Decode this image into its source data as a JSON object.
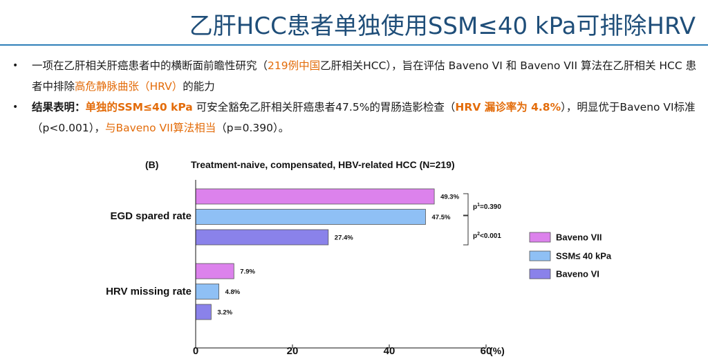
{
  "slide": {
    "title": "乙肝HCC患者单独使用SSM≤40 kPa可排除HRV",
    "bullet1": {
      "t1": "一项在乙肝相关肝癌患者中的横断面前瞻性研究（",
      "h1": "219例中国",
      "t2": "乙肝相关HCC），旨在评估 Baveno VI 和 Baveno VII 算法在乙肝相关 HCC 患者中排除",
      "h2": "高危静脉曲张（HRV）",
      "t3": "的能力"
    },
    "bullet2": {
      "lead": "结果表明：",
      "h1": "单独的SSM≤40 kPa",
      "t1": " 可安全豁免乙肝相关肝癌患者47.5%的胃肠造影检查（",
      "h2": "HRV 漏诊率为 4.8%",
      "t2": "），明显优于Baveno VI标准（p<0.001），",
      "h3": "与Baveno VII算法相当",
      "t3": "（p=0.390）。"
    }
  },
  "chart_data": {
    "type": "bar",
    "orientation": "horizontal",
    "panel_label": "(B)",
    "title": "Treatment-naive, compensated, HBV-related HCC (N=219)",
    "categories": [
      "EGD spared rate",
      "HRV missing rate"
    ],
    "series": [
      {
        "name": "Baveno VII",
        "values": [
          49.3,
          7.9
        ],
        "labels": [
          "49.3%",
          "7.9%"
        ],
        "color": "#dc82ec"
      },
      {
        "name": "SSM≤ 40 kPa",
        "values": [
          47.5,
          4.8
        ],
        "labels": [
          "47.5%",
          "4.8%"
        ],
        "color": "#8fc0f5"
      },
      {
        "name": "Baveno VI",
        "values": [
          27.4,
          3.2
        ],
        "labels": [
          "27.4%",
          "3.2%"
        ],
        "color": "#8a82ea"
      }
    ],
    "xlim": [
      0,
      60
    ],
    "xticks": [
      "0",
      "20",
      "40",
      "60"
    ],
    "x_unit": "(%)",
    "annotations": {
      "p1_base": "p",
      "p1_sup": "1",
      "p1_rest": "=0.390",
      "p2_base": "p",
      "p2_sup": "2",
      "p2_rest": "<0.001"
    },
    "legend_position": "right"
  }
}
